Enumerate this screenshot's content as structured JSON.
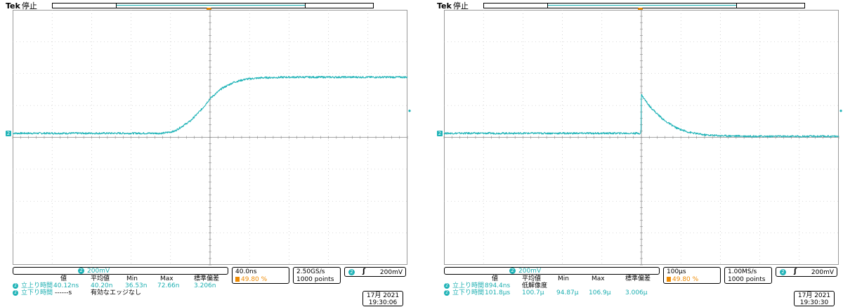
{
  "scopes": [
    {
      "id": "left",
      "brand": "Tek",
      "state": "停止",
      "channel_badge": "2",
      "channel_scale": "200mV",
      "timebase": "40.0ns",
      "trigger_position": "49.80 %",
      "sample_rate": "2.50GS/s",
      "record_length": "1000 points",
      "trigger_channel": "2",
      "trigger_slope_icon": "rising-edge-icon",
      "trigger_level": "200mV",
      "measurements": {
        "headers": [
          "値",
          "平均値",
          "Min",
          "Max",
          "標準偏差"
        ],
        "rows": [
          {
            "badge": "2",
            "label": "立上り時間",
            "value": "40.12ns",
            "mean": "40.20n",
            "min": "36.53n",
            "max": "72.66n",
            "stddev": "3.206n"
          },
          {
            "badge": "2",
            "label": "立下り時間",
            "value": "------s",
            "note": "有効なエッジなし"
          }
        ]
      },
      "date": "17月 2021",
      "time": "19:30:06",
      "trace_color": "#1fb3b7",
      "chart_data": {
        "type": "line",
        "x_divisions": 10,
        "y_divisions": 8,
        "x_unit_per_div": "40.0ns",
        "y_unit_per_div": "200mV",
        "x": [
          -5,
          -1.2,
          -0.9,
          -0.5,
          -0.2,
          0,
          0.3,
          0.6,
          0.9,
          1.3,
          2,
          3,
          5
        ],
        "y": [
          0.2,
          0.2,
          0.3,
          0.8,
          1.4,
          1.9,
          2.4,
          2.7,
          2.85,
          2.92,
          2.95,
          2.95,
          2.95
        ],
        "ylim": [
          -5,
          5
        ],
        "xlim": [
          -5,
          5
        ],
        "grid": true
      }
    },
    {
      "id": "right",
      "brand": "Tek",
      "state": "停止",
      "channel_badge": "2",
      "channel_scale": "200mV",
      "timebase": "100µs",
      "trigger_position": "49.80 %",
      "sample_rate": "1.00MS/s",
      "record_length": "1000 points",
      "trigger_channel": "2",
      "trigger_slope_icon": "rising-edge-icon",
      "trigger_level": "200mV",
      "measurements": {
        "headers": [
          "値",
          "平均値",
          "Min",
          "Max",
          "標準偏差"
        ],
        "rows": [
          {
            "badge": "2",
            "label": "立上り時間",
            "value": "894.4ns",
            "mean": "低解像度",
            "min": "",
            "max": "",
            "stddev": ""
          },
          {
            "badge": "2",
            "label": "立下り時間",
            "value": "101.8µs",
            "mean": "100.7µ",
            "min": "94.87µ",
            "max": "106.9µ",
            "stddev": "3.006µ"
          }
        ]
      },
      "date": "17月 2021",
      "time": "19:30:30",
      "trace_color": "#1fb3b7",
      "chart_data": {
        "type": "line",
        "x_divisions": 10,
        "y_divisions": 8,
        "x_unit_per_div": "100µs",
        "y_unit_per_div": "200mV",
        "x": [
          -5,
          -0.01,
          0,
          0.05,
          0.2,
          0.4,
          0.6,
          0.9,
          1.2,
          1.6,
          2,
          3,
          5
        ],
        "y": [
          0.2,
          0.2,
          2.1,
          1.95,
          1.55,
          1.15,
          0.8,
          0.45,
          0.25,
          0.12,
          0.08,
          0.05,
          0.05
        ],
        "ylim": [
          -5,
          5
        ],
        "xlim": [
          -5,
          5
        ],
        "grid": true
      }
    }
  ]
}
